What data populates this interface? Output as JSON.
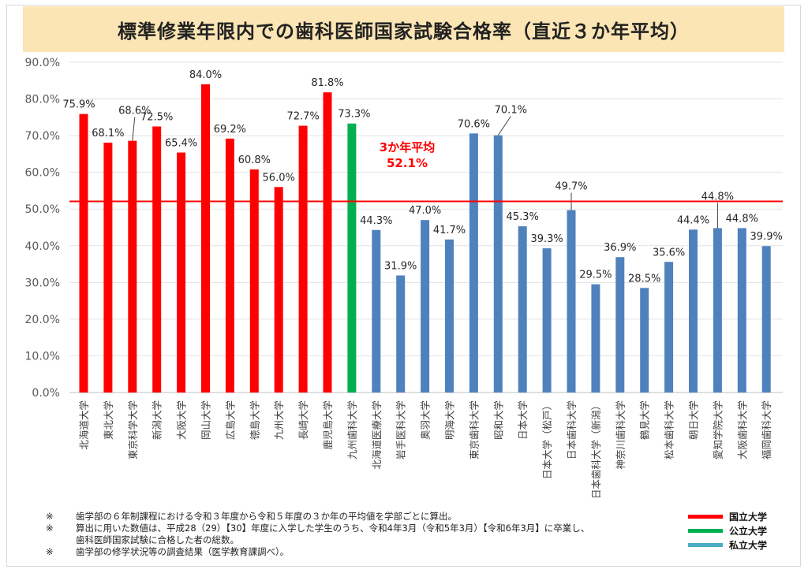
{
  "title": "標準修業年限内での歯科医師国家試験合格率（直近３か年平均）",
  "average_annotation": {
    "line1": "3か年平均",
    "line2": "52.1%"
  },
  "legend": [
    {
      "label": "国立大学",
      "color": "#ff0000"
    },
    {
      "label": "公立大学",
      "color": "#00b050"
    },
    {
      "label": "私立大学",
      "color": "#4bacc6"
    }
  ],
  "notes": [
    {
      "mark": "※",
      "text": "歯学部の６年制課程における令和３年度から令和５年度の３か年の平均値を学部ごとに算出。"
    },
    {
      "mark": "※",
      "text": "算出に用いた数値は、平成28（29）【30】年度に入学した学生のうち、令和4年3月（令和5年3月）【令和6年3月】に卒業し、"
    },
    {
      "mark": "",
      "text": "歯科医師国家試験に合格した者の総数。"
    },
    {
      "mark": "※",
      "text": "歯学部の修学状況等の調査結果（医学教育課調べ）。"
    }
  ],
  "chart_data": {
    "type": "bar",
    "title": "標準修業年限内での歯科医師国家試験合格率（直近３か年平均）",
    "ylim": [
      0,
      90
    ],
    "yticks": [
      "0.0%",
      "10.0%",
      "20.0%",
      "30.0%",
      "40.0%",
      "50.0%",
      "60.0%",
      "70.0%",
      "80.0%",
      "90.0%"
    ],
    "average": 52.1,
    "average_color": "#ff0000",
    "grid": true,
    "legend_position": "bottom-right",
    "bars": [
      {
        "name": "北海道大学",
        "value": 75.9,
        "label": "75.9%",
        "color": "#ff0000"
      },
      {
        "name": "東北大学",
        "value": 68.1,
        "label": "68.1%",
        "color": "#ff0000"
      },
      {
        "name": "東京科学大学",
        "value": 68.6,
        "label": "68.6%",
        "color": "#ff0000"
      },
      {
        "name": "新潟大学",
        "value": 72.5,
        "label": "72.5%",
        "color": "#ff0000"
      },
      {
        "name": "大阪大学",
        "value": 65.4,
        "label": "65.4%",
        "color": "#ff0000"
      },
      {
        "name": "岡山大学",
        "value": 84.0,
        "label": "84.0%",
        "color": "#ff0000"
      },
      {
        "name": "広島大学",
        "value": 69.2,
        "label": "69.2%",
        "color": "#ff0000"
      },
      {
        "name": "徳島大学",
        "value": 60.8,
        "label": "60.8%",
        "color": "#ff0000"
      },
      {
        "name": "九州大学",
        "value": 56.0,
        "label": "56.0%",
        "color": "#ff0000"
      },
      {
        "name": "長崎大学",
        "value": 72.7,
        "label": "72.7%",
        "color": "#ff0000"
      },
      {
        "name": "鹿児島大学",
        "value": 81.8,
        "label": "81.8%",
        "color": "#ff0000"
      },
      {
        "name": "九州歯科大学",
        "value": 73.3,
        "label": "73.3%",
        "color": "#00b050"
      },
      {
        "name": "北海道医療大学",
        "value": 44.3,
        "label": "44.3%",
        "color": "#4f81bd"
      },
      {
        "name": "岩手医科大学",
        "value": 31.9,
        "label": "31.9%",
        "color": "#4f81bd"
      },
      {
        "name": "奥羽大学",
        "value": 47.0,
        "label": "47.0%",
        "color": "#4f81bd"
      },
      {
        "name": "明海大学",
        "value": 41.7,
        "label": "41.7%",
        "color": "#4f81bd"
      },
      {
        "name": "東京歯科大学",
        "value": 70.6,
        "label": "70.6%",
        "color": "#4f81bd"
      },
      {
        "name": "昭和大学",
        "value": 70.1,
        "label": "70.1%",
        "color": "#4f81bd"
      },
      {
        "name": "日本大学",
        "value": 45.3,
        "label": "45.3%",
        "color": "#4f81bd"
      },
      {
        "name": "日本大学（松戸）",
        "value": 39.3,
        "label": "39.3%",
        "color": "#4f81bd"
      },
      {
        "name": "日本歯科大学",
        "value": 49.7,
        "label": "49.7%",
        "color": "#4f81bd"
      },
      {
        "name": "日本歯科大学（新潟）",
        "value": 29.5,
        "label": "29.5%",
        "color": "#4f81bd"
      },
      {
        "name": "神奈川歯科大学",
        "value": 36.9,
        "label": "36.9%",
        "color": "#4f81bd"
      },
      {
        "name": "鶴見大学",
        "value": 28.5,
        "label": "28.5%",
        "color": "#4f81bd"
      },
      {
        "name": "松本歯科大学",
        "value": 35.6,
        "label": "35.6%",
        "color": "#4f81bd"
      },
      {
        "name": "朝日大学",
        "value": 44.4,
        "label": "44.4%",
        "color": "#4f81bd"
      },
      {
        "name": "愛知学院大学",
        "value": 44.8,
        "label": "44.8%",
        "color": "#4f81bd"
      },
      {
        "name": "大阪歯科大学",
        "value": 44.8,
        "label": "44.8%",
        "color": "#4f81bd"
      },
      {
        "name": "福岡歯科大学",
        "value": 39.9,
        "label": "39.9%",
        "color": "#4f81bd"
      }
    ]
  }
}
